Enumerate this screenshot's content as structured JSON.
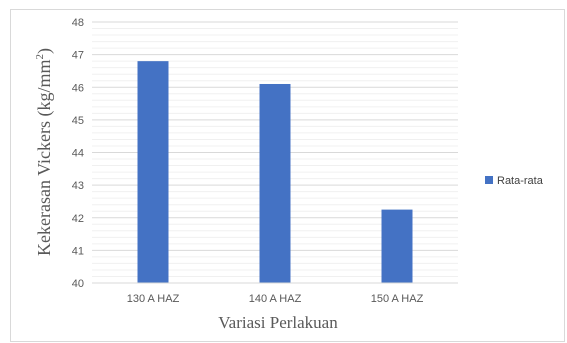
{
  "chart_data": {
    "type": "bar",
    "categories": [
      "130 A HAZ",
      "140 A HAZ",
      "150 A HAZ"
    ],
    "series": [
      {
        "name": "Rata-rata",
        "values": [
          46.8,
          46.1,
          42.25
        ]
      }
    ],
    "xlabel": "Variasi Perlakuan",
    "ylabel": "Kekerasan Vickers (kg/mm",
    "ylabel_superscript": "2",
    "ylabel_close": ")",
    "ylim": [
      40,
      48
    ],
    "yticks": [
      "40",
      "41",
      "42",
      "43",
      "44",
      "45",
      "46",
      "47",
      "48"
    ],
    "grid": true,
    "legend_position": "right",
    "bar_color": "#4472c4"
  }
}
